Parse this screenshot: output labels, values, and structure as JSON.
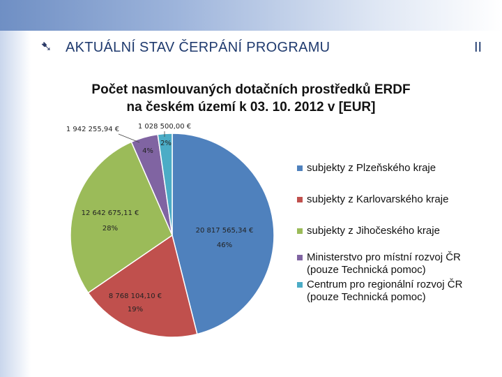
{
  "slide": {
    "bullet": "➷",
    "title": "AKTUÁLNÍ STAV ČERPÁNÍ PROGRAMU",
    "number": "II"
  },
  "chart_data": {
    "type": "pie",
    "title": [
      "Počet nasmlouvaných dotačních prostředků ERDF",
      "na českém území k 03. 10. 2012 v [EUR]"
    ],
    "categories": [
      "subjekty z Plzeňského kraje",
      "subjekty z Karlovarského kraje",
      "subjekty z Jihočeského kraje",
      "Ministerstvo pro místní rozvoj ČR (pouze Technická pomoc)",
      "Centrum pro regionální rozvoj ČR (pouze Technická pomoc)"
    ],
    "legend": [
      [
        "subjekty z  Plzeňského kraje"
      ],
      [
        "subjekty z  Karlovarského kraje"
      ],
      [
        "subjekty z  Jihočeského kraje"
      ],
      [
        "Ministerstvo pro místní rozvoj ČR",
        "(pouze Technická pomoc)"
      ],
      [
        "Centrum pro regionální rozvoj ČR",
        "(pouze Technická pomoc)"
      ]
    ],
    "values": [
      20817565.34,
      8768104.1,
      12642675.11,
      1942255.94,
      1028500.0
    ],
    "value_labels": [
      "20 817 565,34 €",
      "8 768 104,10 €",
      "12 642 675,11 €",
      "1 942 255,94 €",
      "1 028 500,00 €"
    ],
    "percent_labels": [
      "46%",
      "19%",
      "28%",
      "4%",
      "2%"
    ],
    "colors": [
      "#4f81bd",
      "#c0504d",
      "#9bbb59",
      "#8064a2",
      "#4bacc6"
    ],
    "legend_placement": "right"
  }
}
